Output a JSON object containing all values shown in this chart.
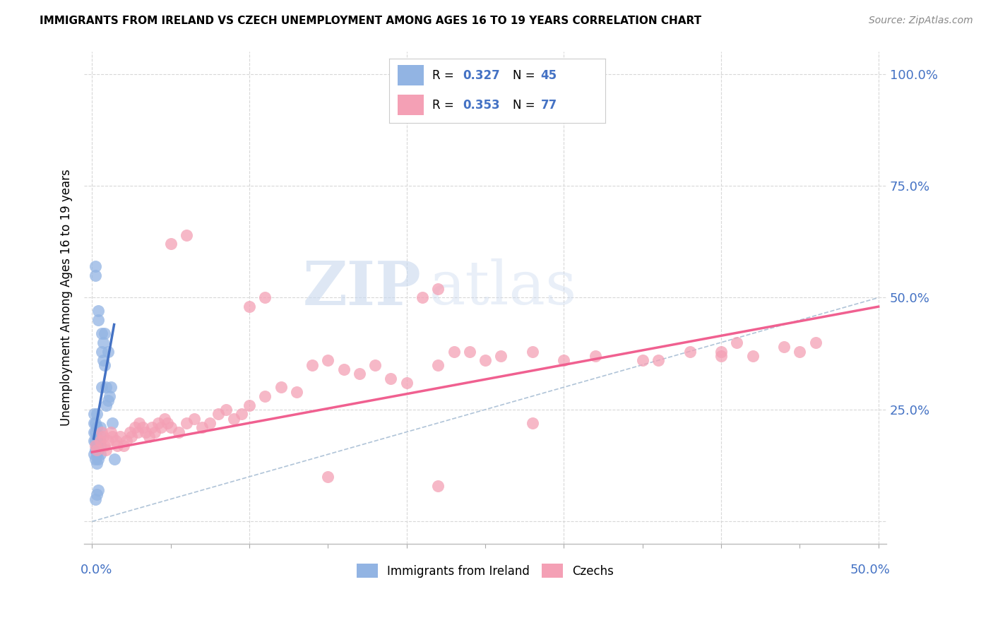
{
  "title": "IMMIGRANTS FROM IRELAND VS CZECH UNEMPLOYMENT AMONG AGES 16 TO 19 YEARS CORRELATION CHART",
  "source": "Source: ZipAtlas.com",
  "ylabel": "Unemployment Among Ages 16 to 19 years",
  "yticks": [
    0.0,
    0.25,
    0.5,
    0.75,
    1.0
  ],
  "ytick_labels": [
    "",
    "25.0%",
    "50.0%",
    "75.0%",
    "100.0%"
  ],
  "xticks": [
    0.0,
    0.05,
    0.1,
    0.15,
    0.2,
    0.25,
    0.3,
    0.35,
    0.4,
    0.45,
    0.5
  ],
  "xlim": [
    -0.005,
    0.505
  ],
  "ylim": [
    -0.05,
    1.05
  ],
  "ireland_R": 0.327,
  "ireland_N": 45,
  "czech_R": 0.353,
  "czech_N": 77,
  "ireland_color": "#92b4e3",
  "czech_color": "#f4a0b5",
  "ireland_line_color": "#4472c4",
  "czech_line_color": "#f06090",
  "diag_line_color": "#b0c4d8",
  "watermark_zip": "ZIP",
  "watermark_atlas": "atlas",
  "legend_text_color": "#4472c4",
  "legend_box_color": "#d0d0d0",
  "grid_color": "#d8d8d8",
  "ireland_scatter_x": [
    0.001,
    0.001,
    0.001,
    0.001,
    0.001,
    0.002,
    0.002,
    0.002,
    0.002,
    0.002,
    0.002,
    0.002,
    0.003,
    0.003,
    0.003,
    0.003,
    0.003,
    0.003,
    0.004,
    0.004,
    0.004,
    0.004,
    0.004,
    0.005,
    0.005,
    0.005,
    0.005,
    0.006,
    0.006,
    0.006,
    0.007,
    0.007,
    0.008,
    0.008,
    0.009,
    0.009,
    0.01,
    0.01,
    0.011,
    0.012,
    0.013,
    0.014,
    0.002,
    0.003,
    0.004
  ],
  "ireland_scatter_y": [
    0.15,
    0.18,
    0.2,
    0.22,
    0.24,
    0.14,
    0.16,
    0.18,
    0.2,
    0.22,
    0.55,
    0.57,
    0.13,
    0.15,
    0.17,
    0.19,
    0.21,
    0.24,
    0.14,
    0.16,
    0.18,
    0.45,
    0.47,
    0.15,
    0.17,
    0.19,
    0.21,
    0.3,
    0.38,
    0.42,
    0.36,
    0.4,
    0.35,
    0.42,
    0.26,
    0.3,
    0.27,
    0.38,
    0.28,
    0.3,
    0.22,
    0.14,
    0.05,
    0.06,
    0.07
  ],
  "czech_scatter_x": [
    0.002,
    0.003,
    0.005,
    0.006,
    0.007,
    0.008,
    0.009,
    0.01,
    0.012,
    0.013,
    0.015,
    0.016,
    0.018,
    0.02,
    0.022,
    0.024,
    0.025,
    0.027,
    0.029,
    0.03,
    0.032,
    0.034,
    0.036,
    0.038,
    0.04,
    0.042,
    0.044,
    0.046,
    0.048,
    0.05,
    0.055,
    0.06,
    0.065,
    0.07,
    0.075,
    0.08,
    0.085,
    0.09,
    0.095,
    0.1,
    0.11,
    0.12,
    0.13,
    0.14,
    0.15,
    0.16,
    0.17,
    0.18,
    0.19,
    0.2,
    0.22,
    0.24,
    0.25,
    0.26,
    0.28,
    0.3,
    0.32,
    0.35,
    0.38,
    0.4,
    0.42,
    0.44,
    0.45,
    0.46,
    0.1,
    0.11,
    0.21,
    0.22,
    0.23,
    0.36,
    0.4,
    0.41,
    0.05,
    0.06,
    0.15,
    0.22,
    0.28
  ],
  "czech_scatter_y": [
    0.17,
    0.16,
    0.18,
    0.2,
    0.19,
    0.17,
    0.16,
    0.18,
    0.2,
    0.19,
    0.18,
    0.17,
    0.19,
    0.17,
    0.18,
    0.2,
    0.19,
    0.21,
    0.2,
    0.22,
    0.21,
    0.2,
    0.19,
    0.21,
    0.2,
    0.22,
    0.21,
    0.23,
    0.22,
    0.21,
    0.2,
    0.22,
    0.23,
    0.21,
    0.22,
    0.24,
    0.25,
    0.23,
    0.24,
    0.26,
    0.28,
    0.3,
    0.29,
    0.35,
    0.36,
    0.34,
    0.33,
    0.35,
    0.32,
    0.31,
    0.35,
    0.38,
    0.36,
    0.37,
    0.38,
    0.36,
    0.37,
    0.36,
    0.38,
    0.37,
    0.37,
    0.39,
    0.38,
    0.4,
    0.48,
    0.5,
    0.5,
    0.52,
    0.38,
    0.36,
    0.38,
    0.4,
    0.62,
    0.64,
    0.1,
    0.08,
    0.22
  ],
  "ireland_trend_x": [
    0.001,
    0.014
  ],
  "ireland_trend_y": [
    0.185,
    0.44
  ],
  "czech_trend_x": [
    0.0,
    0.5
  ],
  "czech_trend_y": [
    0.155,
    0.48
  ]
}
